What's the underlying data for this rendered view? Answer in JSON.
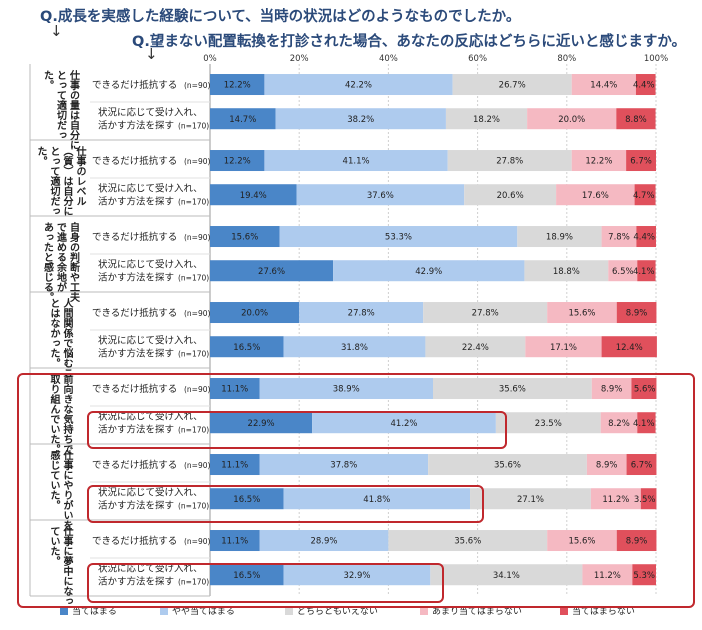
{
  "questions": {
    "q1": "Q.成長を実感した経験について、当時の状況はどのようなものでしたか。",
    "q2": "Q.望まない配置転換を打診された場合、あなたの反応はどちらに近いと感じますか。",
    "arrow": "↓"
  },
  "chart_data": {
    "type": "bar",
    "orientation": "horizontal-stacked-100",
    "xlim": [
      0,
      100
    ],
    "ticks": [
      "0%",
      "20%",
      "40%",
      "60%",
      "80%",
      "100%"
    ],
    "legend_position": "bottom",
    "series_names": [
      "当てはまる",
      "やや当てはまる",
      "どちらともいえない",
      "あまり当てはまらない",
      "当てはまらない"
    ],
    "colors": [
      "#4a86c8",
      "#aecbee",
      "#d9d9d9",
      "#f5b9c2",
      "#e0505c"
    ],
    "row_labels": {
      "a1": "できるだけ抵抗する",
      "a1n": "(n=90)",
      "b1": "状況に応じて受け入れ、",
      "b2": "活かす方法を探す",
      "b2n": "(n=170)"
    },
    "groups": [
      {
        "label": [
          "仕事の量は自分に",
          "とって適切だっ",
          "た。"
        ],
        "rows": [
          [
            12.2,
            42.2,
            26.7,
            14.4,
            4.4
          ],
          [
            14.7,
            38.2,
            18.2,
            20.0,
            8.8
          ]
        ]
      },
      {
        "label": [
          "仕事のレベル",
          "（質）は自分に",
          "とって適切だっ",
          "た。"
        ],
        "rows": [
          [
            12.2,
            41.1,
            27.8,
            12.2,
            6.7
          ],
          [
            19.4,
            37.6,
            20.6,
            17.6,
            4.7
          ]
        ]
      },
      {
        "label": [
          "自身の判断や工夫",
          "で進める余地が",
          "あったと感じる。"
        ],
        "rows": [
          [
            15.6,
            53.3,
            18.9,
            7.8,
            4.4
          ],
          [
            27.6,
            42.9,
            18.8,
            6.5,
            4.1
          ]
        ]
      },
      {
        "label": [
          "人間関係で悩むこ",
          "とはなかった。"
        ],
        "rows": [
          [
            20.0,
            27.8,
            27.8,
            15.6,
            8.9
          ],
          [
            16.5,
            31.8,
            22.4,
            17.1,
            12.4
          ]
        ]
      },
      {
        "label": [
          "前向きな気持ちで",
          "取り組んでいた。"
        ],
        "rows": [
          [
            11.1,
            38.9,
            35.6,
            8.9,
            5.6
          ],
          [
            22.9,
            41.2,
            23.5,
            8.2,
            4.1
          ]
        ]
      },
      {
        "label": [
          "仕事にやりがいを",
          "感じていた。"
        ],
        "rows": [
          [
            11.1,
            37.8,
            35.6,
            8.9,
            6.7
          ],
          [
            16.5,
            41.8,
            27.1,
            11.2,
            3.5
          ]
        ]
      },
      {
        "label": [
          "仕事に夢中になっ",
          "ていた。"
        ],
        "rows": [
          [
            11.1,
            28.9,
            35.6,
            15.6,
            8.9
          ],
          [
            16.5,
            32.9,
            34.1,
            11.2,
            5.3
          ]
        ]
      }
    ]
  }
}
